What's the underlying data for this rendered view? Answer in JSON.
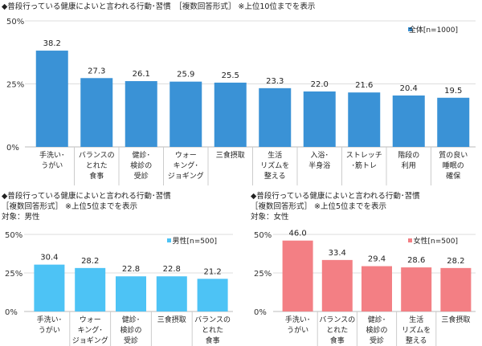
{
  "chart_data": [
    {
      "type": "bar",
      "title": "◆普段行っている健康によいと言われる行動･習慣　［複数回答形式］ ※上位10位までを表示",
      "subtitle": "",
      "ylim": [
        0,
        50
      ],
      "yticks": [
        "0%",
        "25%",
        "50%"
      ],
      "grid": true,
      "legend": "top-right",
      "color": "#3a92d6",
      "series": [
        {
          "name": "全体[n=1000]",
          "values": [
            38.2,
            27.3,
            26.1,
            25.9,
            25.5,
            23.3,
            22.0,
            21.6,
            20.4,
            19.5
          ]
        }
      ],
      "categories": [
        [
          "手洗い･",
          "うがい"
        ],
        [
          "バランスの",
          "とれた",
          "食事"
        ],
        [
          "健診･",
          "検診の",
          "受診"
        ],
        [
          "ウォー",
          "キング･",
          "ジョギング"
        ],
        [
          "三食摂取"
        ],
        [
          "生活",
          "リズムを",
          "整える"
        ],
        [
          "入浴･",
          "半身浴"
        ],
        [
          "ストレッチ",
          "･筋トレ"
        ],
        [
          "階段の",
          "利用"
        ],
        [
          "質の良い",
          "睡眠の",
          "確保"
        ]
      ]
    },
    {
      "type": "bar",
      "title": "◆普段行っている健康によいと言われる行動･習慣",
      "subtitle": "［複数回答形式］ ※上位5位までを表示",
      "target": "対象：男性",
      "ylim": [
        0,
        50
      ],
      "yticks": [
        "0%",
        "25%",
        "50%"
      ],
      "grid": true,
      "legend": "top-right",
      "color": "#4dc3f5",
      "series": [
        {
          "name": "男性[n=500]",
          "values": [
            30.4,
            28.2,
            22.8,
            22.8,
            21.2
          ]
        }
      ],
      "categories": [
        [
          "手洗い･",
          "うがい"
        ],
        [
          "ウォー",
          "キング･",
          "ジョギング"
        ],
        [
          "健診･",
          "検診の",
          "受診"
        ],
        [
          "三食摂取"
        ],
        [
          "バランスの",
          "とれた",
          "食事"
        ]
      ]
    },
    {
      "type": "bar",
      "title": "◆普段行っている健康によいと言われる行動･習慣",
      "subtitle": "［複数回答形式］ ※上位5位までを表示",
      "target": "対象：女性",
      "ylim": [
        0,
        50
      ],
      "yticks": [
        "0%",
        "25%",
        "50%"
      ],
      "grid": true,
      "legend": "top-right",
      "color": "#f37f84",
      "series": [
        {
          "name": "女性[n=500]",
          "values": [
            46.0,
            33.4,
            29.4,
            28.6,
            28.2
          ]
        }
      ],
      "categories": [
        [
          "手洗い･",
          "うがい"
        ],
        [
          "バランスの",
          "とれた",
          "食事"
        ],
        [
          "健診･",
          "検診の",
          "受診"
        ],
        [
          "生活",
          "リズムを",
          "整える"
        ],
        [
          "三食摂取"
        ]
      ]
    }
  ]
}
